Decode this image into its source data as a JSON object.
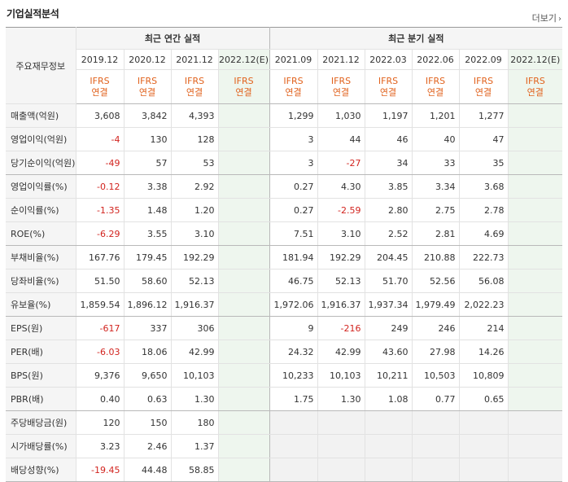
{
  "header": {
    "title": "기업실적분석",
    "more": "더보기"
  },
  "table": {
    "corner_label": "주요재무정보",
    "annual_group": "최근 연간 실적",
    "quarter_group": "최근 분기 실적",
    "annual_periods": [
      "2019.12",
      "2020.12",
      "2021.12",
      "2022.12(E)"
    ],
    "quarter_periods": [
      "2021.09",
      "2021.12",
      "2022.03",
      "2022.06",
      "2022.09",
      "2022.12(E)"
    ],
    "ifrs_line1": "IFRS",
    "ifrs_line2": "연결",
    "rows": [
      {
        "label": "매출액(억원)",
        "annual": [
          "3,608",
          "3,842",
          "4,393",
          ""
        ],
        "quarter": [
          "1,299",
          "1,030",
          "1,197",
          "1,201",
          "1,277",
          ""
        ]
      },
      {
        "label": "영업이익(억원)",
        "annual": [
          "-4",
          "130",
          "128",
          ""
        ],
        "quarter": [
          "3",
          "44",
          "46",
          "40",
          "47",
          ""
        ]
      },
      {
        "label": "당기순이익(억원)",
        "annual": [
          "-49",
          "57",
          "53",
          ""
        ],
        "quarter": [
          "3",
          "-27",
          "34",
          "33",
          "35",
          ""
        ]
      },
      {
        "label": "영업이익률(%)",
        "annual": [
          "-0.12",
          "3.38",
          "2.92",
          ""
        ],
        "quarter": [
          "0.27",
          "4.30",
          "3.85",
          "3.34",
          "3.68",
          ""
        ]
      },
      {
        "label": "순이익률(%)",
        "annual": [
          "-1.35",
          "1.48",
          "1.20",
          ""
        ],
        "quarter": [
          "0.27",
          "-2.59",
          "2.80",
          "2.75",
          "2.78",
          ""
        ]
      },
      {
        "label": "ROE(%)",
        "annual": [
          "-6.29",
          "3.55",
          "3.10",
          ""
        ],
        "quarter": [
          "7.51",
          "3.10",
          "2.52",
          "2.81",
          "4.69",
          ""
        ]
      },
      {
        "label": "부채비율(%)",
        "annual": [
          "167.76",
          "179.45",
          "192.29",
          ""
        ],
        "quarter": [
          "181.94",
          "192.29",
          "204.45",
          "210.88",
          "222.73",
          ""
        ]
      },
      {
        "label": "당좌비율(%)",
        "annual": [
          "51.50",
          "58.60",
          "52.13",
          ""
        ],
        "quarter": [
          "46.75",
          "52.13",
          "51.70",
          "52.56",
          "56.08",
          ""
        ]
      },
      {
        "label": "유보율(%)",
        "annual": [
          "1,859.54",
          "1,896.12",
          "1,916.37",
          ""
        ],
        "quarter": [
          "1,972.06",
          "1,916.37",
          "1,937.34",
          "1,979.49",
          "2,022.23",
          ""
        ]
      },
      {
        "label": "EPS(원)",
        "annual": [
          "-617",
          "337",
          "306",
          ""
        ],
        "quarter": [
          "9",
          "-216",
          "249",
          "246",
          "214",
          ""
        ]
      },
      {
        "label": "PER(배)",
        "annual": [
          "-6.03",
          "18.06",
          "42.99",
          ""
        ],
        "quarter": [
          "24.32",
          "42.99",
          "43.60",
          "27.98",
          "14.26",
          ""
        ]
      },
      {
        "label": "BPS(원)",
        "annual": [
          "9,376",
          "9,650",
          "10,103",
          ""
        ],
        "quarter": [
          "10,233",
          "10,103",
          "10,211",
          "10,503",
          "10,809",
          ""
        ]
      },
      {
        "label": "PBR(배)",
        "annual": [
          "0.40",
          "0.63",
          "1.30",
          ""
        ],
        "quarter": [
          "1.75",
          "1.30",
          "1.08",
          "0.77",
          "0.65",
          ""
        ]
      },
      {
        "label": "주당배당금(원)",
        "annual": [
          "120",
          "150",
          "180",
          ""
        ],
        "quarter": null
      },
      {
        "label": "시가배당률(%)",
        "annual": [
          "3.23",
          "2.46",
          "1.37",
          ""
        ],
        "quarter": null
      },
      {
        "label": "배당성향(%)",
        "annual": [
          "-19.45",
          "44.48",
          "58.85",
          ""
        ],
        "quarter": null
      }
    ]
  },
  "colors": {
    "negative": "#d2241f",
    "ifrs": "#e1621d",
    "estimate_bg": "#eef6ee"
  }
}
